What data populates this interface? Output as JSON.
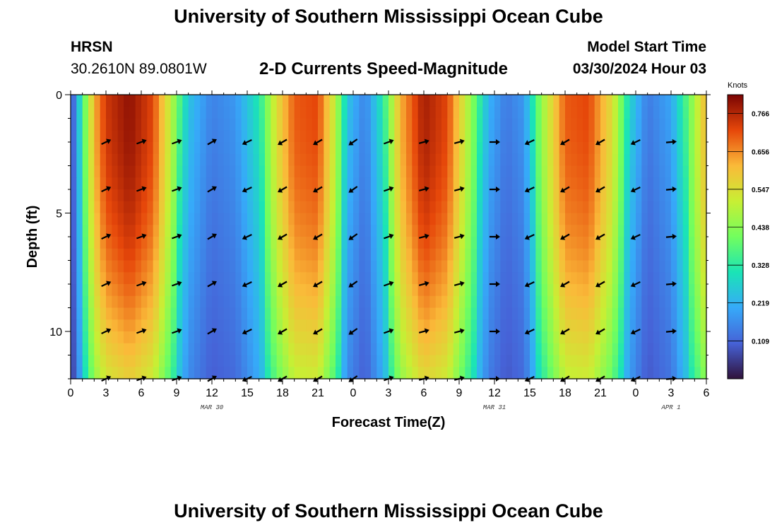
{
  "header": {
    "title": "University of Southern Mississippi Ocean Cube",
    "station": "HRSN",
    "coords": "30.2610N  89.0801W",
    "product": "2-D Currents Speed-Magnitude",
    "start_label": "Model Start Time",
    "start_time": "03/30/2024 Hour 03"
  },
  "footer": {
    "title": "University of Southern Mississippi Ocean Cube"
  },
  "chart_data": {
    "type": "heatmap",
    "title": "2-D Currents Speed-Magnitude",
    "xlabel": "Forecast Time(Z)",
    "ylabel": "Depth (ft)",
    "x_range_hours": [
      0,
      54
    ],
    "x_ticks": [
      {
        "h": 0,
        "label": "0"
      },
      {
        "h": 3,
        "label": "3"
      },
      {
        "h": 6,
        "label": "6"
      },
      {
        "h": 9,
        "label": "9"
      },
      {
        "h": 12,
        "label": "12"
      },
      {
        "h": 15,
        "label": "15"
      },
      {
        "h": 18,
        "label": "18"
      },
      {
        "h": 21,
        "label": "21"
      },
      {
        "h": 24,
        "label": "0"
      },
      {
        "h": 27,
        "label": "3"
      },
      {
        "h": 30,
        "label": "6"
      },
      {
        "h": 33,
        "label": "9"
      },
      {
        "h": 36,
        "label": "12"
      },
      {
        "h": 39,
        "label": "15"
      },
      {
        "h": 42,
        "label": "18"
      },
      {
        "h": 45,
        "label": "21"
      },
      {
        "h": 48,
        "label": "0"
      },
      {
        "h": 51,
        "label": "3"
      },
      {
        "h": 54,
        "label": "6"
      }
    ],
    "date_labels": [
      {
        "h": 12,
        "label": "MAR 30"
      },
      {
        "h": 36,
        "label": "MAR 31"
      },
      {
        "h": 51,
        "label": "APR 1"
      }
    ],
    "y_range_ft": [
      0,
      12
    ],
    "y_ticks": [
      {
        "v": 0,
        "label": "0"
      },
      {
        "v": 5,
        "label": "5"
      },
      {
        "v": 10,
        "label": "10"
      }
    ],
    "colorbar": {
      "unit": "Knots",
      "min": 0.0,
      "max": 0.82,
      "ticks": [
        "0.766",
        "0.656",
        "0.547",
        "0.438",
        "0.328",
        "0.219",
        "0.109"
      ],
      "tick_values": [
        0.766,
        0.656,
        0.547,
        0.438,
        0.328,
        0.219,
        0.109
      ]
    },
    "surface_speed_profile_knots": [
      {
        "h": 0,
        "v": 0.05
      },
      {
        "h": 1,
        "v": 0.35
      },
      {
        "h": 2,
        "v": 0.62
      },
      {
        "h": 3,
        "v": 0.74
      },
      {
        "h": 5,
        "v": 0.8
      },
      {
        "h": 7,
        "v": 0.72
      },
      {
        "h": 8.5,
        "v": 0.5
      },
      {
        "h": 10,
        "v": 0.25
      },
      {
        "h": 12,
        "v": 0.15
      },
      {
        "h": 14,
        "v": 0.18
      },
      {
        "h": 16,
        "v": 0.32
      },
      {
        "h": 17.5,
        "v": 0.55
      },
      {
        "h": 19,
        "v": 0.7
      },
      {
        "h": 21,
        "v": 0.72
      },
      {
        "h": 22.5,
        "v": 0.5
      },
      {
        "h": 23.5,
        "v": 0.25
      },
      {
        "h": 25,
        "v": 0.15
      },
      {
        "h": 26.5,
        "v": 0.32
      },
      {
        "h": 28,
        "v": 0.62
      },
      {
        "h": 30,
        "v": 0.78
      },
      {
        "h": 32,
        "v": 0.72
      },
      {
        "h": 34,
        "v": 0.45
      },
      {
        "h": 35.5,
        "v": 0.22
      },
      {
        "h": 37,
        "v": 0.14
      },
      {
        "h": 38.5,
        "v": 0.18
      },
      {
        "h": 40,
        "v": 0.45
      },
      {
        "h": 42,
        "v": 0.7
      },
      {
        "h": 44,
        "v": 0.72
      },
      {
        "h": 46,
        "v": 0.55
      },
      {
        "h": 47.5,
        "v": 0.28
      },
      {
        "h": 49,
        "v": 0.14
      },
      {
        "h": 51,
        "v": 0.2
      },
      {
        "h": 52.5,
        "v": 0.4
      },
      {
        "h": 54,
        "v": 0.62
      }
    ],
    "arrow_times_h": [
      3,
      6,
      9,
      12,
      15,
      18,
      21,
      24,
      27,
      30,
      33,
      36,
      39,
      42,
      45,
      48,
      51
    ],
    "arrow_depths_ft": [
      2,
      4,
      6,
      8,
      10,
      12
    ],
    "arrow_directions_deg": [
      25,
      20,
      20,
      30,
      205,
      210,
      210,
      215,
      20,
      15,
      15,
      0,
      205,
      210,
      210,
      205,
      5
    ]
  }
}
